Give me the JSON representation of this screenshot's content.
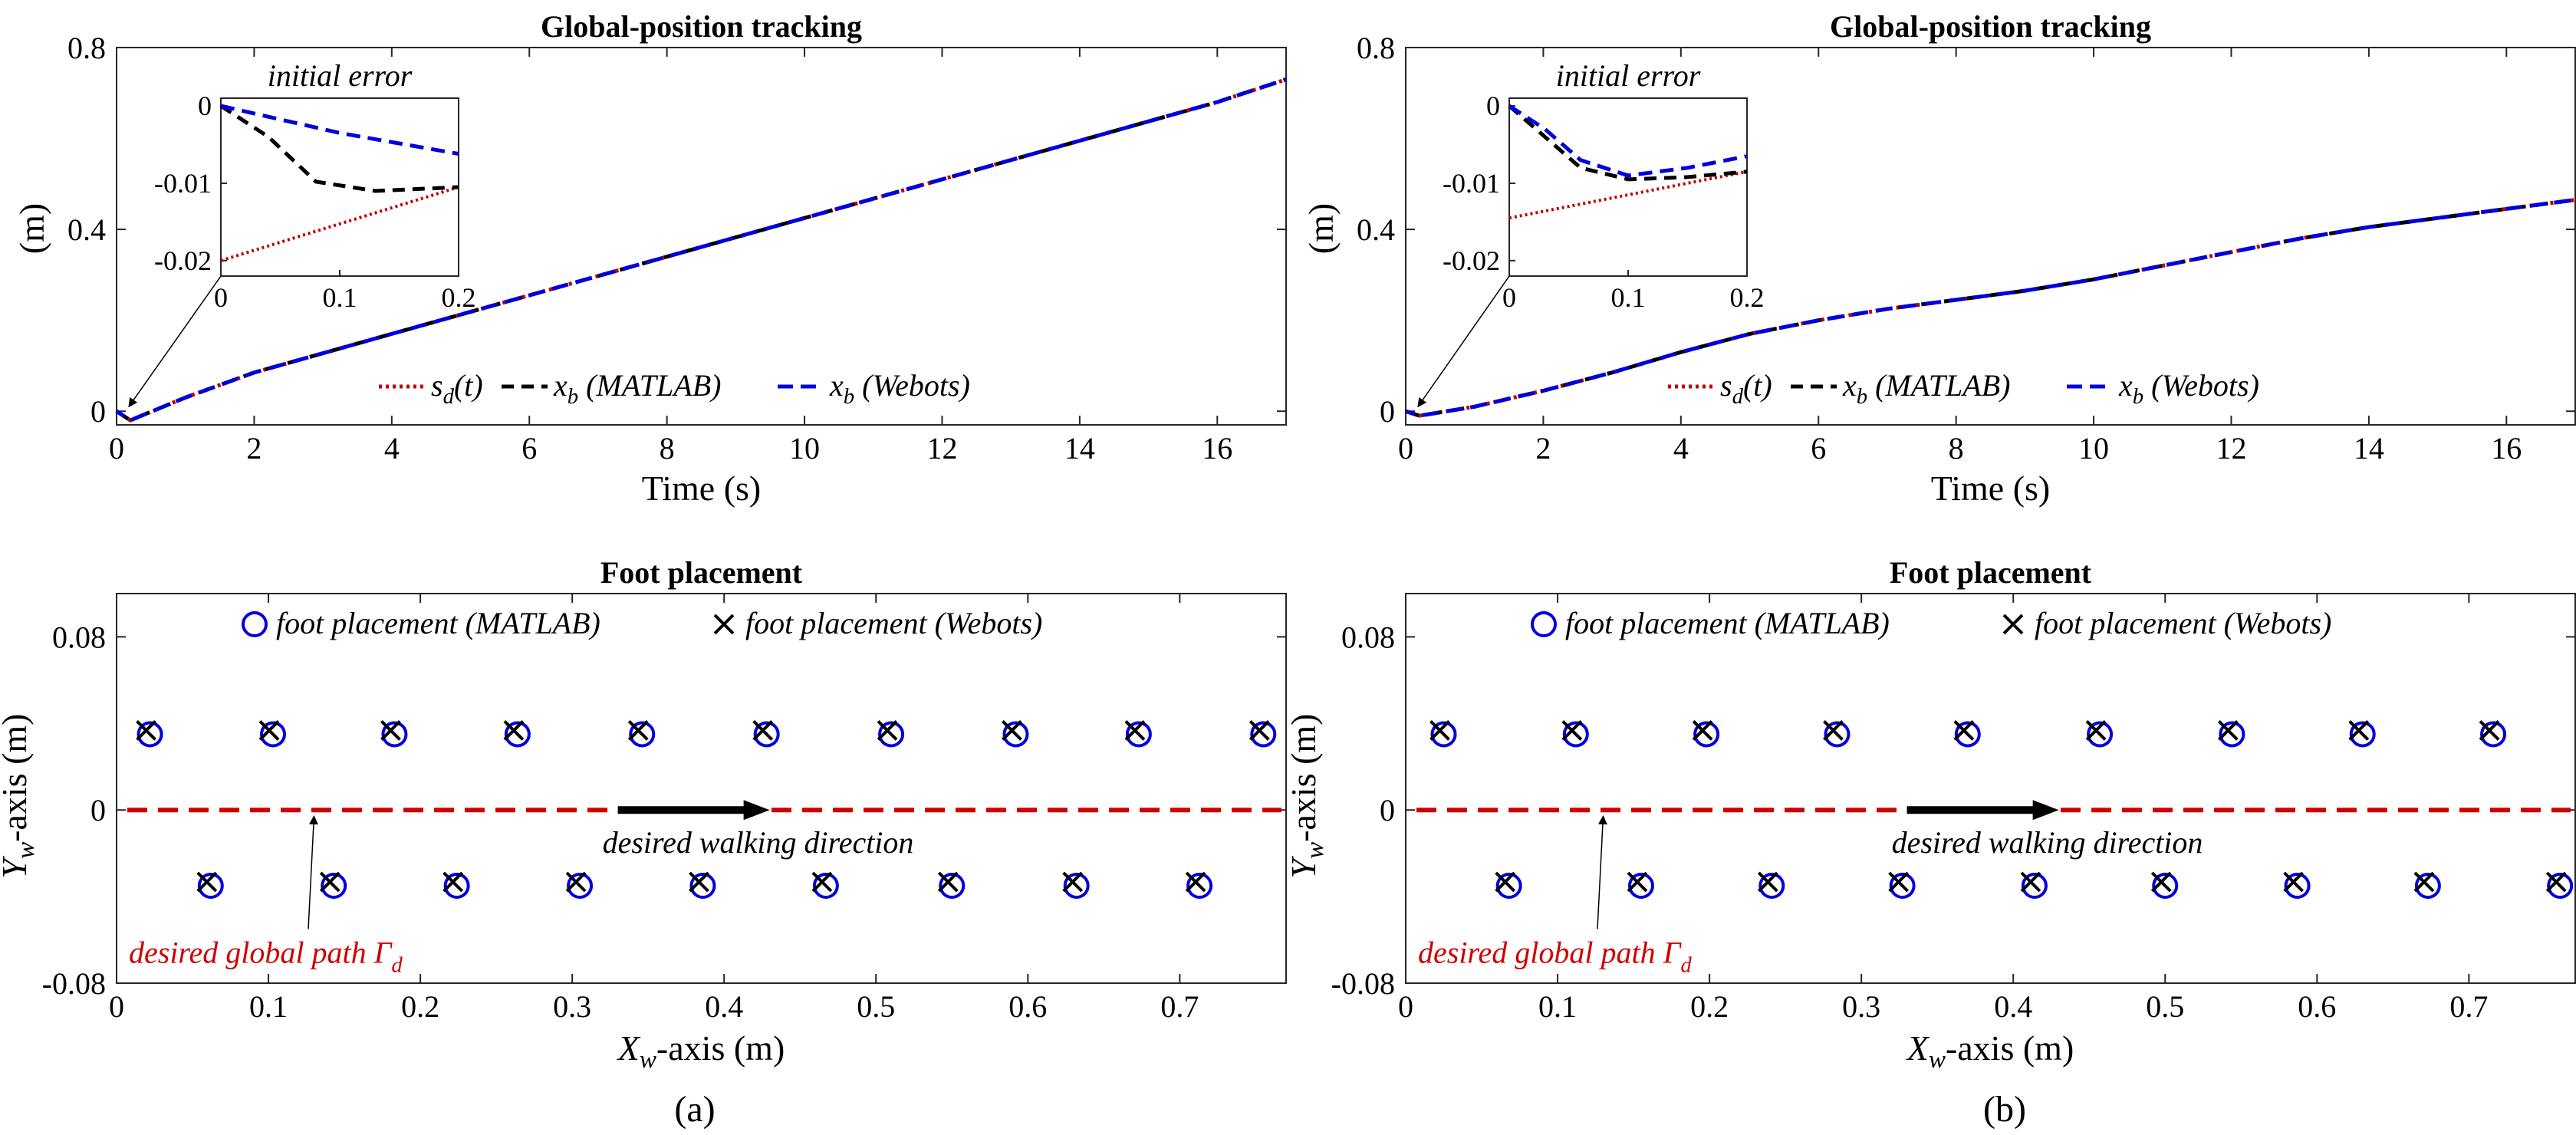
{
  "colors": {
    "desired": "#c00000",
    "matlab": "#000000",
    "webots": "#0000dd",
    "path": "#d00000",
    "arrow": "#000000"
  },
  "panels": [
    {
      "label": "(a)",
      "tracking": {
        "title": "Global-position tracking",
        "xlabel": "Time (s)",
        "ylabel": "(m)",
        "xlim": [
          0,
          17
        ],
        "ylim": [
          -0.03,
          0.8
        ],
        "xticks": [
          0,
          2,
          4,
          6,
          8,
          10,
          12,
          14,
          16
        ],
        "yticks": [
          0,
          0.4,
          0.8
        ],
        "ytick_labels": [
          "0",
          "0.4",
          "0.8"
        ],
        "legend": [
          "s_d(t)",
          "x_b (MATLAB)",
          "x_b (Webots)"
        ],
        "curve": [
          [
            0,
            0
          ],
          [
            0.2,
            -0.02
          ],
          [
            1,
            0.03
          ],
          [
            2,
            0.085
          ],
          [
            4,
            0.17
          ],
          [
            6,
            0.255
          ],
          [
            8,
            0.34
          ],
          [
            10,
            0.425
          ],
          [
            12,
            0.51
          ],
          [
            14,
            0.595
          ],
          [
            16,
            0.68
          ],
          [
            17,
            0.73
          ]
        ],
        "inset": {
          "title": "initial error",
          "xlim": [
            0,
            0.2
          ],
          "ylim": [
            -0.022,
            0.001
          ],
          "xticks": [
            0,
            0.1,
            0.2
          ],
          "xtick_labels": [
            "0",
            "0.1",
            "0.2"
          ],
          "yticks": [
            0,
            -0.01,
            -0.02
          ],
          "ytick_labels": [
            "0",
            "-0.01",
            "-0.02"
          ],
          "sd": [
            [
              0,
              -0.02
            ],
            [
              0.2,
              -0.0105
            ]
          ],
          "matlab": [
            [
              0,
              0
            ],
            [
              0.04,
              -0.004
            ],
            [
              0.08,
              -0.0098
            ],
            [
              0.13,
              -0.011
            ],
            [
              0.2,
              -0.0105
            ]
          ],
          "webots": [
            [
              0,
              0
            ],
            [
              0.1,
              -0.0035
            ],
            [
              0.2,
              -0.0062
            ]
          ]
        }
      },
      "foot": {
        "title": "Foot placement",
        "xlabel": "X_w-axis (m)",
        "ylabel": "Y_w-axis (m)",
        "xlim": [
          0,
          0.77
        ],
        "ylim": [
          -0.08,
          0.1
        ],
        "xticks": [
          0,
          0.1,
          0.2,
          0.3,
          0.4,
          0.5,
          0.6,
          0.7
        ],
        "xtick_labels": [
          "0",
          "0.1",
          "0.2",
          "0.3",
          "0.4",
          "0.5",
          "0.6",
          "0.7"
        ],
        "yticks": [
          -0.08,
          0,
          0.08
        ],
        "ytick_labels": [
          "-0.08",
          "0",
          "0.08"
        ],
        "legend": [
          "foot placement (MATLAB)",
          "foot placement (Webots)"
        ],
        "annotation_direction": "desired walking direction",
        "annotation_path": "desired global path Γ_d",
        "upper_x": [
          0.022,
          0.103,
          0.183,
          0.264,
          0.346,
          0.428,
          0.51,
          0.592,
          0.673,
          0.755
        ],
        "lower_x": [
          0.062,
          0.143,
          0.224,
          0.305,
          0.386,
          0.467,
          0.55,
          0.632,
          0.713
        ],
        "upper_y": 0.035,
        "lower_y": -0.035,
        "arrow_from_x": 0.33,
        "arrow_to_x": 0.43
      }
    },
    {
      "label": "(b)",
      "tracking": {
        "title": "Global-position tracking",
        "xlabel": "Time (s)",
        "ylabel": "(m)",
        "xlim": [
          0,
          17
        ],
        "ylim": [
          -0.03,
          0.8
        ],
        "xticks": [
          0,
          2,
          4,
          6,
          8,
          10,
          12,
          14,
          16
        ],
        "yticks": [
          0,
          0.4,
          0.8
        ],
        "ytick_labels": [
          "0",
          "0.4",
          "0.8"
        ],
        "legend": [
          "s_d(t)",
          "x_b (MATLAB)",
          "x_b (Webots)"
        ],
        "curve": [
          [
            0,
            0
          ],
          [
            0.2,
            -0.01
          ],
          [
            1,
            0.01
          ],
          [
            2,
            0.045
          ],
          [
            3,
            0.085
          ],
          [
            4,
            0.13
          ],
          [
            5,
            0.17
          ],
          [
            6,
            0.2
          ],
          [
            7,
            0.225
          ],
          [
            8,
            0.245
          ],
          [
            9,
            0.265
          ],
          [
            10,
            0.29
          ],
          [
            11,
            0.32
          ],
          [
            12,
            0.35
          ],
          [
            13,
            0.38
          ],
          [
            14,
            0.405
          ],
          [
            15,
            0.425
          ],
          [
            16,
            0.445
          ],
          [
            17,
            0.465
          ]
        ],
        "inset": {
          "title": "initial error",
          "xlim": [
            0,
            0.2
          ],
          "ylim": [
            -0.022,
            0.001
          ],
          "xticks": [
            0,
            0.1,
            0.2
          ],
          "xtick_labels": [
            "0",
            "0.1",
            "0.2"
          ],
          "yticks": [
            0,
            -0.01,
            -0.02
          ],
          "ytick_labels": [
            "0",
            "-0.01",
            "-0.02"
          ],
          "sd": [
            [
              0,
              -0.0145
            ],
            [
              0.2,
              -0.0085
            ]
          ],
          "matlab": [
            [
              0,
              0
            ],
            [
              0.03,
              -0.004
            ],
            [
              0.06,
              -0.008
            ],
            [
              0.1,
              -0.0095
            ],
            [
              0.15,
              -0.0092
            ],
            [
              0.2,
              -0.0085
            ]
          ],
          "webots": [
            [
              0,
              0
            ],
            [
              0.03,
              -0.003
            ],
            [
              0.06,
              -0.007
            ],
            [
              0.1,
              -0.009
            ],
            [
              0.15,
              -0.008
            ],
            [
              0.2,
              -0.0065
            ]
          ]
        }
      },
      "foot": {
        "title": "Foot placement",
        "xlabel": "X_w-axis (m)",
        "ylabel": "Y_w-axis (m)",
        "xlim": [
          0,
          0.77
        ],
        "ylim": [
          -0.08,
          0.1
        ],
        "xticks": [
          0,
          0.1,
          0.2,
          0.3,
          0.4,
          0.5,
          0.6,
          0.7
        ],
        "xtick_labels": [
          "0",
          "0.1",
          "0.2",
          "0.3",
          "0.4",
          "0.5",
          "0.6",
          "0.7"
        ],
        "yticks": [
          -0.08,
          0,
          0.08
        ],
        "ytick_labels": [
          "-0.08",
          "0",
          "0.08"
        ],
        "legend": [
          "foot placement (MATLAB)",
          "foot placement (Webots)"
        ],
        "annotation_direction": "desired walking direction",
        "annotation_path": "desired global path Γ_d",
        "upper_x": [
          0.025,
          0.112,
          0.198,
          0.284,
          0.37,
          0.457,
          0.544,
          0.63,
          0.716
        ],
        "lower_x": [
          0.068,
          0.155,
          0.241,
          0.327,
          0.414,
          0.5,
          0.587,
          0.673,
          0.76
        ],
        "upper_y": 0.035,
        "lower_y": -0.035,
        "arrow_from_x": 0.33,
        "arrow_to_x": 0.43
      }
    }
  ],
  "chart_data": [
    {
      "type": "line",
      "title": "Global-position tracking (a)",
      "xlabel": "Time (s)",
      "ylabel": "(m)",
      "xlim": [
        0,
        17
      ],
      "ylim": [
        -0.03,
        0.8
      ],
      "series": [
        {
          "name": "s_d(t)",
          "x": [
            0,
            2,
            4,
            6,
            8,
            10,
            12,
            14,
            16,
            17
          ],
          "values": [
            -0.02,
            0.085,
            0.17,
            0.255,
            0.34,
            0.425,
            0.51,
            0.595,
            0.68,
            0.73
          ]
        },
        {
          "name": "x_b (MATLAB)",
          "x": [
            0,
            2,
            4,
            6,
            8,
            10,
            12,
            14,
            16,
            17
          ],
          "values": [
            0,
            0.085,
            0.17,
            0.255,
            0.34,
            0.425,
            0.51,
            0.595,
            0.68,
            0.73
          ]
        },
        {
          "name": "x_b (Webots)",
          "x": [
            0,
            2,
            4,
            6,
            8,
            10,
            12,
            14,
            16,
            17
          ],
          "values": [
            0,
            0.085,
            0.17,
            0.255,
            0.34,
            0.425,
            0.51,
            0.595,
            0.68,
            0.73
          ]
        }
      ]
    },
    {
      "type": "line",
      "title": "Global-position tracking (b)",
      "xlabel": "Time (s)",
      "ylabel": "(m)",
      "xlim": [
        0,
        17
      ],
      "ylim": [
        -0.03,
        0.8
      ],
      "series": [
        {
          "name": "s_d(t)",
          "x": [
            0,
            2,
            4,
            6,
            8,
            10,
            12,
            14,
            16,
            17
          ],
          "values": [
            -0.015,
            0.045,
            0.13,
            0.2,
            0.245,
            0.29,
            0.35,
            0.405,
            0.445,
            0.465
          ]
        },
        {
          "name": "x_b (MATLAB)",
          "x": [
            0,
            2,
            4,
            6,
            8,
            10,
            12,
            14,
            16,
            17
          ],
          "values": [
            0,
            0.045,
            0.13,
            0.2,
            0.245,
            0.29,
            0.35,
            0.405,
            0.445,
            0.465
          ]
        },
        {
          "name": "x_b (Webots)",
          "x": [
            0,
            2,
            4,
            6,
            8,
            10,
            12,
            14,
            16,
            17
          ],
          "values": [
            0,
            0.045,
            0.13,
            0.2,
            0.245,
            0.29,
            0.35,
            0.405,
            0.445,
            0.465
          ]
        }
      ]
    },
    {
      "type": "scatter",
      "title": "Foot placement (a)",
      "xlabel": "X_w-axis (m)",
      "ylabel": "Y_w-axis (m)",
      "xlim": [
        0,
        0.77
      ],
      "ylim": [
        -0.08,
        0.1
      ],
      "series": [
        {
          "name": "foot placement (MATLAB)",
          "x": [
            0.022,
            0.062,
            0.103,
            0.143,
            0.183,
            0.224,
            0.264,
            0.305,
            0.346,
            0.386,
            0.428,
            0.467,
            0.51,
            0.55,
            0.592,
            0.632,
            0.673,
            0.713,
            0.755
          ],
          "values": [
            0.035,
            -0.035,
            0.035,
            -0.035,
            0.035,
            -0.035,
            0.035,
            -0.035,
            0.035,
            -0.035,
            0.035,
            -0.035,
            0.035,
            -0.035,
            0.035,
            -0.035,
            0.035,
            -0.035,
            0.035
          ]
        },
        {
          "name": "foot placement (Webots)",
          "x": [
            0.022,
            0.062,
            0.103,
            0.143,
            0.183,
            0.224,
            0.264,
            0.305,
            0.346,
            0.386,
            0.428,
            0.467,
            0.51,
            0.55,
            0.592,
            0.632,
            0.673,
            0.713,
            0.755
          ],
          "values": [
            0.035,
            -0.035,
            0.035,
            -0.035,
            0.035,
            -0.035,
            0.035,
            -0.035,
            0.035,
            -0.035,
            0.035,
            -0.035,
            0.035,
            -0.035,
            0.035,
            -0.035,
            0.035,
            -0.035,
            0.035
          ]
        }
      ]
    },
    {
      "type": "scatter",
      "title": "Foot placement (b)",
      "xlabel": "X_w-axis (m)",
      "ylabel": "Y_w-axis (m)",
      "xlim": [
        0,
        0.77
      ],
      "ylim": [
        -0.08,
        0.1
      ],
      "series": [
        {
          "name": "foot placement (MATLAB)",
          "x": [
            0.025,
            0.068,
            0.112,
            0.155,
            0.198,
            0.241,
            0.284,
            0.327,
            0.37,
            0.414,
            0.457,
            0.5,
            0.544,
            0.587,
            0.63,
            0.673,
            0.716,
            0.76
          ],
          "values": [
            0.035,
            -0.035,
            0.035,
            -0.035,
            0.035,
            -0.035,
            0.035,
            -0.035,
            0.035,
            -0.035,
            0.035,
            -0.035,
            0.035,
            -0.035,
            0.035,
            -0.035,
            0.035,
            -0.035
          ]
        },
        {
          "name": "foot placement (Webots)",
          "x": [
            0.025,
            0.068,
            0.112,
            0.155,
            0.198,
            0.241,
            0.284,
            0.327,
            0.37,
            0.414,
            0.457,
            0.5,
            0.544,
            0.587,
            0.63,
            0.673,
            0.716,
            0.76
          ],
          "values": [
            0.035,
            -0.035,
            0.035,
            -0.035,
            0.035,
            -0.035,
            0.035,
            -0.035,
            0.035,
            -0.035,
            0.035,
            -0.035,
            0.035,
            -0.035,
            0.035,
            -0.035,
            0.035,
            -0.035
          ]
        }
      ]
    }
  ]
}
